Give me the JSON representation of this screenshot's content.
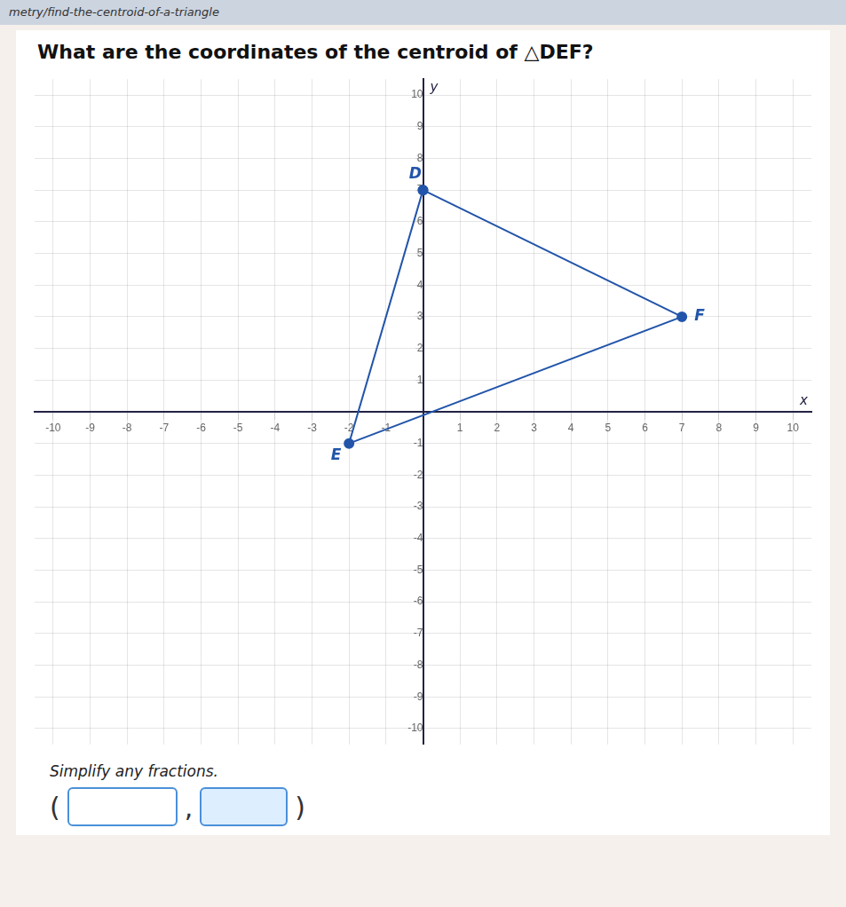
{
  "chart_data": {
    "type": "line",
    "title": "What are the coordinates of the centroid of △DEF?",
    "xlabel": "x",
    "ylabel": "y",
    "x": [
      0,
      -2,
      7
    ],
    "values": [
      7,
      -1,
      3
    ],
    "point_labels": [
      "D",
      "E",
      "F"
    ],
    "color": "#2255aa",
    "marker": "o",
    "xlim": [
      -10.5,
      10.5
    ],
    "ylim": [
      -10.5,
      10.5
    ],
    "xticks": [
      -10,
      -9,
      -8,
      -7,
      -6,
      -5,
      -4,
      -3,
      -2,
      -1,
      1,
      2,
      3,
      4,
      5,
      6,
      7,
      8,
      9,
      10
    ],
    "yticks": [
      -10,
      -9,
      -8,
      -7,
      -6,
      -5,
      -4,
      -3,
      -2,
      -1,
      1,
      2,
      3,
      4,
      5,
      6,
      7,
      8,
      9,
      10
    ],
    "grid": true,
    "annotations": [
      "metry/find-the-centroid-of-a-triangle",
      "Simplify any fractions.",
      "(",
      ",",
      ")"
    ]
  }
}
